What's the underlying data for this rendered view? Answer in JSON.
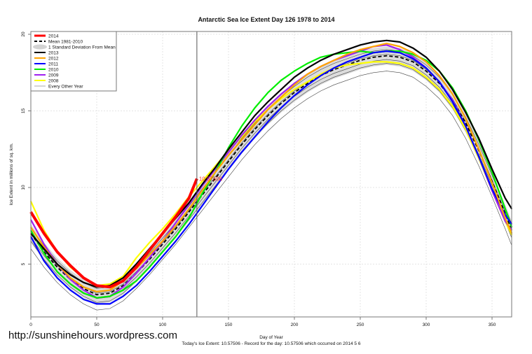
{
  "chart_data": {
    "type": "line",
    "title": "Antarctic Sea Ice Extent Day 126 1978 to 2014",
    "xlabel": "Day of Year",
    "ylabel": "Ice Extent in millions of sq. km.",
    "footer": "Today's Ice Extent: 10.57506  - Record for the day: 10.57506 which occurred on 2014 5 6",
    "xlim": [
      0,
      366
    ],
    "ylim": [
      1.55,
      20.2
    ],
    "x_ticks": [
      "0",
      "50",
      "100",
      "150",
      "200",
      "250",
      "300",
      "350"
    ],
    "y_ticks": [
      "5",
      "10",
      "15",
      "20"
    ],
    "grid": true,
    "legend_position": "top-left",
    "current_day": 126,
    "current_value_label": "10.57506",
    "x": [
      0,
      10,
      20,
      30,
      40,
      50,
      60,
      70,
      80,
      90,
      100,
      110,
      120,
      130,
      140,
      150,
      160,
      170,
      180,
      190,
      200,
      210,
      220,
      230,
      240,
      250,
      260,
      270,
      280,
      290,
      300,
      310,
      320,
      330,
      340,
      350,
      360,
      365
    ],
    "legend": [
      {
        "label": "2014",
        "color": "#ff0000",
        "style": "thick"
      },
      {
        "label": "Mean 1981-2010",
        "color": "#000000",
        "style": "dashed"
      },
      {
        "label": "1 Standard Deviation From Mean",
        "color": "#d3d3d3",
        "style": "band"
      },
      {
        "label": "2013",
        "color": "#000000",
        "style": "solid"
      },
      {
        "label": "2012",
        "color": "#ffa500",
        "style": "solid"
      },
      {
        "label": "2011",
        "color": "#0000ff",
        "style": "solid"
      },
      {
        "label": "2010",
        "color": "#00ee00",
        "style": "solid"
      },
      {
        "label": "2009",
        "color": "#a020f0",
        "style": "solid"
      },
      {
        "label": "2008",
        "color": "#ffff00",
        "style": "solid"
      },
      {
        "label": "Every Other Year",
        "color": "#aaaaaa",
        "style": "thin"
      }
    ],
    "series": [
      {
        "name": "2014",
        "color": "#ff0000",
        "x": [
          0,
          10,
          20,
          30,
          40,
          50,
          60,
          70,
          80,
          90,
          100,
          110,
          120,
          126
        ],
        "values": [
          8.4,
          7.0,
          5.8,
          4.9,
          4.1,
          3.6,
          3.5,
          3.9,
          4.8,
          5.9,
          7.0,
          8.1,
          9.3,
          10.57506
        ]
      },
      {
        "name": "2013",
        "color": "#000000",
        "values": [
          7.0,
          6.0,
          5.0,
          4.3,
          3.8,
          3.5,
          3.6,
          4.1,
          5.0,
          6.0,
          7.0,
          8.0,
          9.0,
          10.2,
          11.3,
          12.5,
          13.6,
          14.7,
          15.6,
          16.4,
          17.2,
          17.8,
          18.3,
          18.7,
          19.0,
          19.3,
          19.5,
          19.6,
          19.5,
          19.1,
          18.5,
          17.6,
          16.4,
          14.9,
          13.2,
          11.2,
          9.3,
          8.6
        ]
      },
      {
        "name": "2012",
        "color": "#ffa500",
        "values": [
          7.4,
          6.1,
          5.0,
          4.1,
          3.5,
          3.2,
          3.3,
          3.9,
          4.7,
          5.6,
          6.5,
          7.5,
          8.6,
          9.8,
          11.0,
          12.1,
          13.1,
          14.1,
          15.1,
          15.9,
          16.7,
          17.4,
          17.9,
          18.3,
          18.7,
          19.0,
          19.2,
          19.4,
          19.2,
          18.8,
          18.2,
          17.3,
          16.1,
          14.5,
          12.5,
          10.3,
          8.0,
          7.0
        ]
      },
      {
        "name": "2011",
        "color": "#0000ff",
        "values": [
          6.8,
          5.2,
          4.1,
          3.3,
          2.7,
          2.4,
          2.4,
          2.9,
          3.6,
          4.5,
          5.5,
          6.5,
          7.6,
          8.8,
          10.0,
          11.2,
          12.3,
          13.3,
          14.3,
          15.2,
          16.0,
          16.7,
          17.3,
          17.8,
          18.2,
          18.5,
          18.8,
          18.9,
          18.8,
          18.4,
          17.8,
          16.9,
          15.6,
          14.0,
          12.0,
          9.9,
          8.2,
          7.6
        ]
      },
      {
        "name": "2010",
        "color": "#00ee00",
        "values": [
          7.2,
          5.7,
          4.5,
          3.7,
          3.1,
          2.8,
          2.9,
          3.3,
          3.9,
          4.8,
          5.8,
          6.8,
          8.0,
          9.6,
          11.0,
          12.6,
          14.0,
          15.2,
          16.2,
          17.0,
          17.6,
          18.1,
          18.5,
          18.7,
          18.8,
          18.9,
          18.8,
          18.9,
          18.9,
          18.7,
          18.3,
          17.6,
          16.5,
          15.0,
          13.1,
          11.0,
          8.6,
          7.4
        ]
      },
      {
        "name": "2009",
        "color": "#a020f0",
        "values": [
          7.9,
          6.3,
          5.0,
          4.0,
          3.3,
          2.8,
          2.9,
          3.5,
          4.4,
          5.4,
          6.5,
          7.7,
          8.9,
          10.1,
          11.2,
          12.3,
          13.4,
          14.4,
          15.3,
          16.1,
          16.8,
          17.4,
          17.9,
          18.3,
          18.6,
          18.9,
          19.2,
          19.3,
          19.0,
          18.5,
          17.8,
          16.9,
          15.7,
          14.0,
          12.0,
          9.8,
          7.8,
          7.2
        ]
      },
      {
        "name": "2008",
        "color": "#ffff00",
        "values": [
          9.1,
          7.2,
          5.8,
          4.8,
          4.1,
          3.6,
          3.7,
          4.2,
          5.4,
          6.4,
          7.3,
          8.3,
          9.4,
          10.4,
          11.4,
          12.4,
          13.3,
          14.3,
          15.1,
          15.8,
          16.4,
          16.9,
          17.4,
          17.8,
          18.0,
          18.1,
          18.2,
          18.2,
          18.1,
          17.8,
          17.2,
          16.4,
          15.3,
          13.8,
          11.9,
          9.8,
          7.8,
          6.9
        ]
      },
      {
        "name": "Mean 1981-2010",
        "color": "#000000",
        "values": [
          7.0,
          5.8,
          4.8,
          4.0,
          3.4,
          3.0,
          3.1,
          3.6,
          4.4,
          5.3,
          6.3,
          7.3,
          8.4,
          9.5,
          10.6,
          11.7,
          12.8,
          13.8,
          14.7,
          15.5,
          16.2,
          16.8,
          17.3,
          17.7,
          18.0,
          18.3,
          18.5,
          18.6,
          18.5,
          18.2,
          17.6,
          16.8,
          15.7,
          14.2,
          12.4,
          10.4,
          8.3,
          7.2
        ]
      }
    ],
    "other_years": [
      [
        6.5,
        5.3,
        4.3,
        3.5,
        2.9,
        2.5,
        2.6,
        3.1,
        3.9,
        4.8,
        5.8,
        6.8,
        7.9,
        9.0,
        10.1,
        11.2,
        12.3,
        13.3,
        14.2,
        15.0,
        15.7,
        16.3,
        16.8,
        17.2,
        17.5,
        17.8,
        18.0,
        18.1,
        18.0,
        17.7,
        17.1,
        16.3,
        15.2,
        13.7,
        11.9,
        9.9,
        7.8,
        6.7
      ],
      [
        7.4,
        6.2,
        5.2,
        4.4,
        3.8,
        3.4,
        3.5,
        4.0,
        4.8,
        5.7,
        6.7,
        7.7,
        8.8,
        9.9,
        11.0,
        12.1,
        13.2,
        14.2,
        15.1,
        15.9,
        16.6,
        17.2,
        17.7,
        18.1,
        18.4,
        18.7,
        18.9,
        19.0,
        18.9,
        18.6,
        18.0,
        17.2,
        16.1,
        14.6,
        12.8,
        10.8,
        8.7,
        7.6
      ],
      [
        6.0,
        4.8,
        3.8,
        3.0,
        2.4,
        2.0,
        2.1,
        2.6,
        3.4,
        4.3,
        5.3,
        6.3,
        7.4,
        8.5,
        9.6,
        10.7,
        11.8,
        12.8,
        13.7,
        14.5,
        15.2,
        15.8,
        16.3,
        16.7,
        17.0,
        17.3,
        17.5,
        17.6,
        17.5,
        17.2,
        16.6,
        15.8,
        14.7,
        13.2,
        11.4,
        9.4,
        7.3,
        6.2
      ],
      [
        7.1,
        5.9,
        4.9,
        4.1,
        3.5,
        3.1,
        3.2,
        3.7,
        4.5,
        5.4,
        6.4,
        7.4,
        8.5,
        9.6,
        10.7,
        11.8,
        12.9,
        13.9,
        14.8,
        15.6,
        16.3,
        16.9,
        17.4,
        17.8,
        18.1,
        18.4,
        18.6,
        18.7,
        18.6,
        18.3,
        17.7,
        16.9,
        15.8,
        14.3,
        12.5,
        10.5,
        8.4,
        7.3
      ],
      [
        6.75,
        5.55,
        4.55,
        3.75,
        3.15,
        2.75,
        2.85,
        3.35,
        4.15,
        5.05,
        6.05,
        7.05,
        8.15,
        9.25,
        10.35,
        11.45,
        12.55,
        13.55,
        14.45,
        15.25,
        15.95,
        16.55,
        17.05,
        17.45,
        17.75,
        18.05,
        18.25,
        18.35,
        18.25,
        17.95,
        17.35,
        16.55,
        15.45,
        13.95,
        12.15,
        10.15,
        8.05,
        6.95
      ]
    ]
  },
  "watermark": "http://sunshinehours.wordpress.com"
}
